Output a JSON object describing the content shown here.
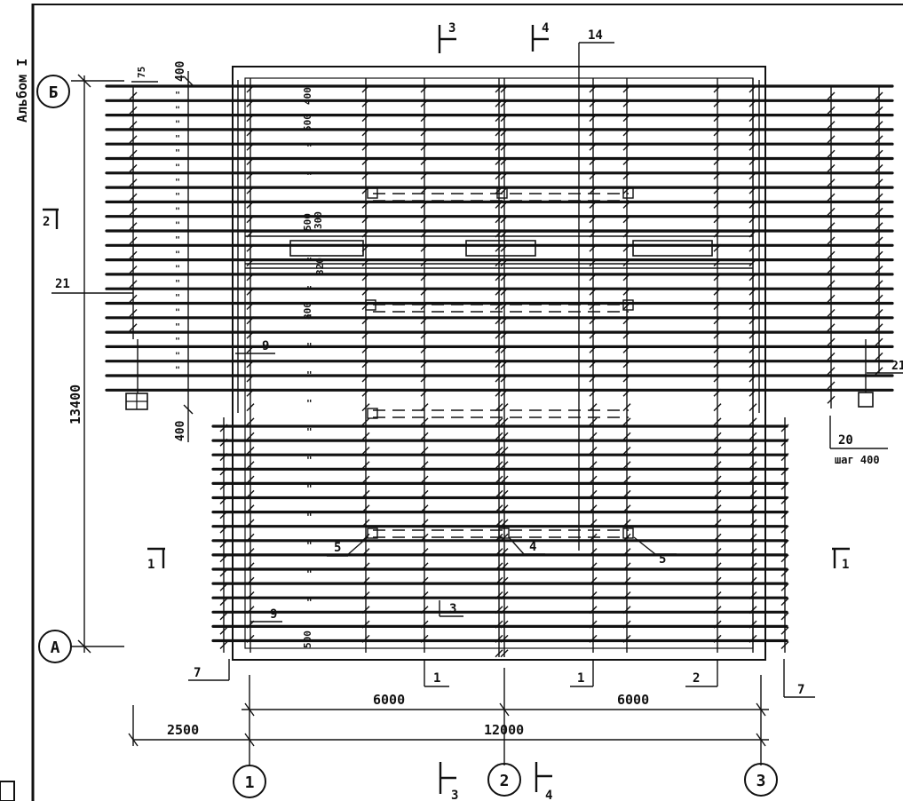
{
  "album_label": "Альбом I",
  "grid_axes": {
    "columns": [
      "1",
      "2",
      "3"
    ],
    "rows": [
      "Б",
      "А"
    ]
  },
  "dimensions": {
    "span_left": "6000",
    "span_right": "6000",
    "total_width": "12000",
    "cantilever": "2500",
    "total_depth": "13400",
    "edge_top": "400",
    "edge_bottom": "400",
    "top_offset": "75"
  },
  "spacing_marks": {
    "m400": "400",
    "m500": "500",
    "m300": "300",
    "m320": "320",
    "m800": "800",
    "m500b": "500",
    "m500c": "500"
  },
  "section_marks": {
    "s3_top": "3",
    "s4_top": "4",
    "s2_left": "2",
    "s1_left": "1",
    "s1_right": "1",
    "s3_bottom": "3",
    "s4_bottom": "4"
  },
  "callouts": {
    "c14": "14",
    "c21": "21",
    "c9_upper": "9",
    "c9_lower": "9",
    "c20": "20",
    "c20_note": "шаг 400",
    "c21_right": "21",
    "c5_left": "5",
    "c4": "4",
    "c5_right": "5",
    "c3": "3",
    "c7_left": "7",
    "c7_right": "7",
    "c1_left": "1",
    "c1_mid": "1",
    "c2": "2"
  }
}
